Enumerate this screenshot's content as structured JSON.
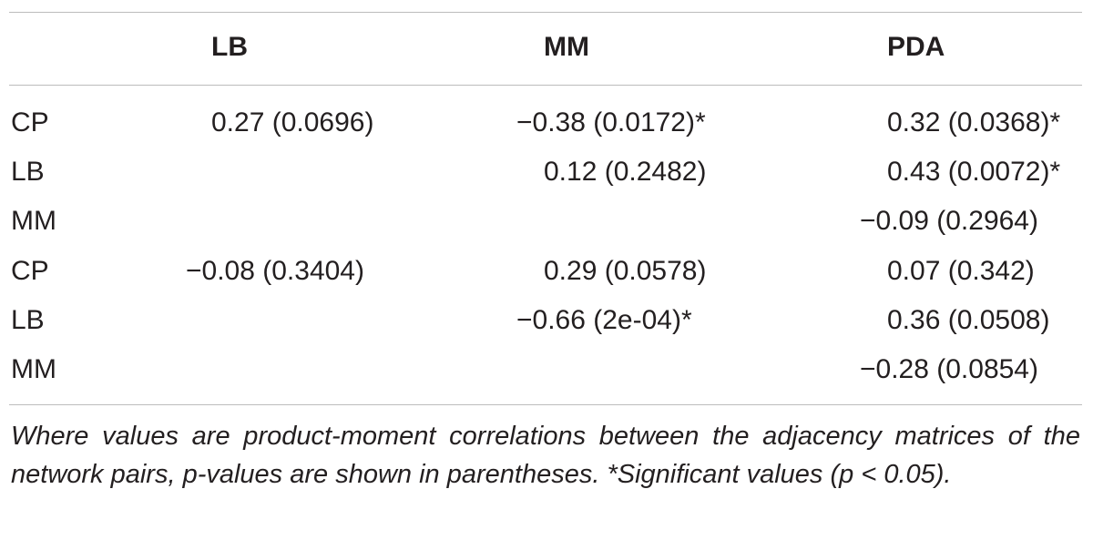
{
  "table": {
    "columns": [
      "",
      "LB",
      "MM",
      "PDA"
    ],
    "rows": [
      {
        "label": "CP",
        "lb": "0.27  (0.0696)",
        "mm": "−0.38  (0.0172)*",
        "pda": "0.32  (0.0368)*"
      },
      {
        "label": "LB",
        "lb": "",
        "mm": "0.12  (0.2482)",
        "pda": "0.43  (0.0072)*"
      },
      {
        "label": "MM",
        "lb": "",
        "mm": "",
        "pda": "−0.09  (0.2964)"
      },
      {
        "label": "CP",
        "lb": "−0.08  (0.3404)",
        "mm": "0.29  (0.0578)",
        "pda": "0.07  (0.342)"
      },
      {
        "label": "LB",
        "lb": "",
        "mm": "−0.66  (2e-04)*",
        "pda": "0.36  (0.0508)"
      },
      {
        "label": "MM",
        "lb": "",
        "mm": "",
        "pda": "−0.28  (0.0854)"
      }
    ]
  },
  "note": "Where values are product-moment correlations between the adjacency matrices of the network pairs, p-values are shown in parentheses. *Significant values (p < 0.05)."
}
